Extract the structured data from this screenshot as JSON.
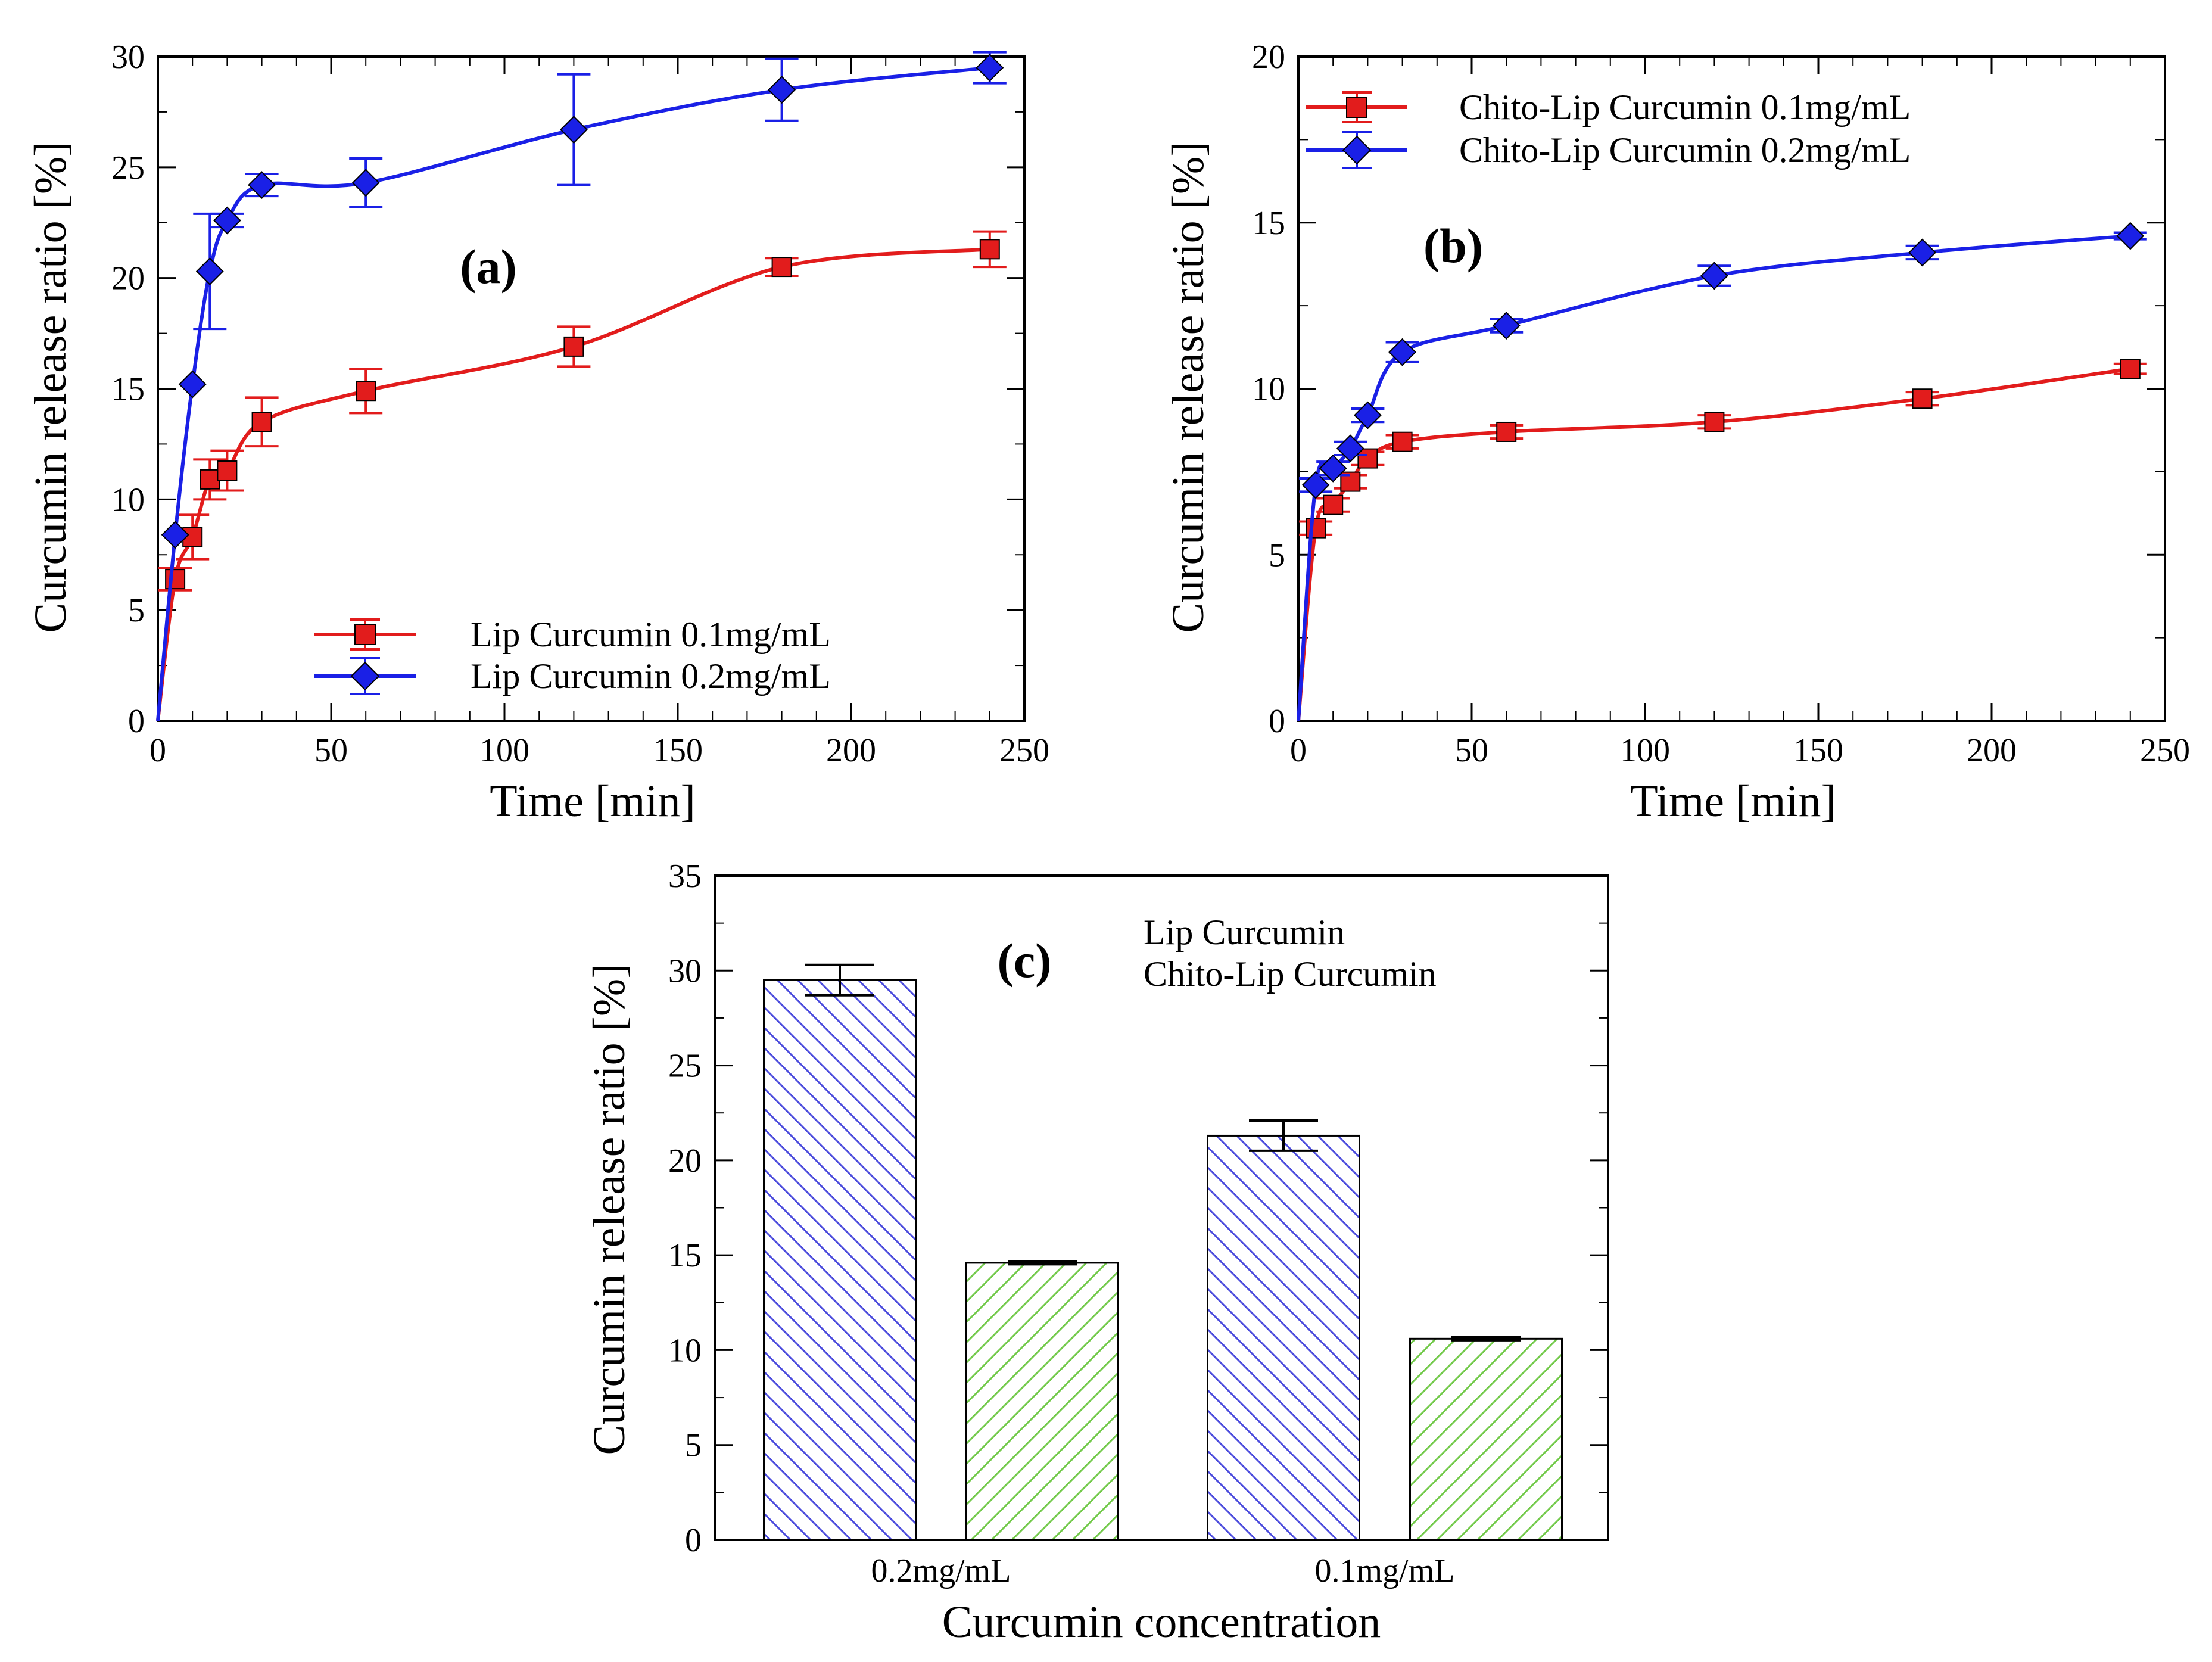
{
  "colors": {
    "lip_low_red": "#e21c1c",
    "lip_high_blue": "#1a20e6",
    "bar_blue_hatch": "#4b4bdc",
    "bar_green_hatch": "#72c94a",
    "axis": "#000000"
  },
  "chart_data": [
    {
      "id": "a",
      "type": "line",
      "panel_label": "(a)",
      "xlabel": "Time [min]",
      "ylabel": "Curcumin release ratio [%]",
      "xlim": [
        0,
        250
      ],
      "ylim": [
        0,
        30
      ],
      "xticks": [
        0,
        50,
        100,
        150,
        200,
        250
      ],
      "yticks": [
        0,
        5,
        10,
        15,
        20,
        25,
        30
      ],
      "legend_position": "bottom-center",
      "series": [
        {
          "name": "Lip Curcumin 0.1mg/mL",
          "color": "#e21c1c",
          "marker": "square",
          "x": [
            0,
            5,
            10,
            15,
            20,
            30,
            60,
            120,
            180,
            240
          ],
          "y": [
            0,
            6.4,
            8.3,
            10.9,
            11.3,
            13.5,
            14.9,
            16.9,
            20.5,
            21.3
          ],
          "err": [
            0,
            0.5,
            1.0,
            0.9,
            0.9,
            1.1,
            1.0,
            0.9,
            0.4,
            0.8
          ]
        },
        {
          "name": "Lip Curcumin 0.2mg/mL",
          "color": "#1a20e6",
          "marker": "diamond",
          "x": [
            0,
            5,
            10,
            15,
            20,
            30,
            60,
            120,
            180,
            240
          ],
          "y": [
            0,
            8.4,
            15.2,
            20.3,
            22.6,
            24.2,
            24.3,
            26.7,
            28.5,
            29.5
          ],
          "err": [
            0,
            0,
            0,
            2.6,
            0.3,
            0.5,
            1.1,
            2.5,
            1.4,
            0.7
          ]
        }
      ]
    },
    {
      "id": "b",
      "type": "line",
      "panel_label": "(b)",
      "xlabel": "Time [min]",
      "ylabel": "Curcumin release ratio [%]",
      "xlim": [
        0,
        250
      ],
      "ylim": [
        0,
        20
      ],
      "xticks": [
        0,
        50,
        100,
        150,
        200,
        250
      ],
      "yticks": [
        0,
        5,
        10,
        15,
        20
      ],
      "legend_position": "top-left",
      "series": [
        {
          "name": "Chito-Lip Curcumin 0.1mg/mL",
          "color": "#e21c1c",
          "marker": "square",
          "x": [
            0,
            5,
            10,
            15,
            20,
            30,
            60,
            120,
            180,
            240
          ],
          "y": [
            0,
            5.8,
            6.5,
            7.2,
            7.9,
            8.4,
            8.7,
            9.0,
            9.7,
            10.6
          ],
          "err": [
            0,
            0.2,
            0.2,
            0.2,
            0.2,
            0.2,
            0.2,
            0.2,
            0.2,
            0.15
          ]
        },
        {
          "name": "Chito-Lip Curcumin 0.2mg/mL",
          "color": "#1a20e6",
          "marker": "diamond",
          "x": [
            0,
            5,
            10,
            15,
            20,
            30,
            60,
            120,
            180,
            240
          ],
          "y": [
            0,
            7.1,
            7.6,
            8.2,
            9.2,
            11.1,
            11.9,
            13.4,
            14.1,
            14.6
          ],
          "err": [
            0,
            0.2,
            0.2,
            0.2,
            0.2,
            0.3,
            0.2,
            0.3,
            0.2,
            0.1
          ]
        }
      ]
    },
    {
      "id": "c",
      "type": "bar",
      "panel_label": "(c)",
      "xlabel": "Curcumin concentration",
      "ylabel": "Curcumin release ratio [%]",
      "ylim": [
        0,
        35
      ],
      "yticks": [
        0,
        5,
        10,
        15,
        20,
        25,
        30,
        35
      ],
      "categories": [
        "0.2mg/mL",
        "0.1mg/mL"
      ],
      "legend_position": "top-right",
      "series": [
        {
          "name": "Lip Curcumin",
          "hatch_color": "#4b4bdc",
          "hatch": "backslash",
          "values": [
            29.5,
            21.3
          ],
          "err": [
            0.8,
            0.8
          ]
        },
        {
          "name": "Chito-Lip Curcumin",
          "hatch_color": "#72c94a",
          "hatch": "slash",
          "values": [
            14.6,
            10.6
          ],
          "err": [
            0.08,
            0.08
          ]
        }
      ]
    }
  ]
}
